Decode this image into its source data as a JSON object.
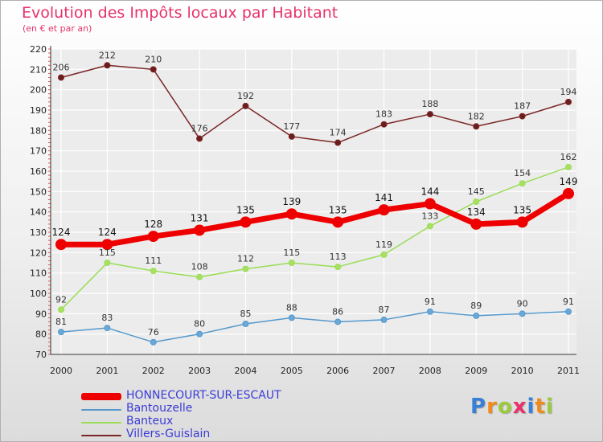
{
  "title": "Evolution des Impôts locaux par Habitant",
  "subtitle": "(en € et par an)",
  "logo": {
    "text": "Proxiti",
    "colors": [
      "#3a7fd6",
      "#f08a1c",
      "#9bcb3c",
      "#e8326b",
      "#3a7fd6",
      "#f08a1c",
      "#9bcb3c"
    ]
  },
  "chart_data": {
    "type": "line",
    "x": [
      "2000",
      "2001",
      "2002",
      "2003",
      "2004",
      "2005",
      "2006",
      "2007",
      "2008",
      "2009",
      "2010",
      "2011"
    ],
    "ylim": [
      70,
      220
    ],
    "yticks": [
      "70",
      "80",
      "90",
      "100",
      "110",
      "120",
      "130",
      "140",
      "150",
      "160",
      "170",
      "180",
      "190",
      "200",
      "210",
      "220"
    ],
    "grid": true,
    "legend_position": "bottom-left",
    "series": [
      {
        "name": "Villers-Guislain",
        "color": "#7b2626",
        "values": [
          206,
          212,
          210,
          176,
          192,
          177,
          174,
          183,
          188,
          182,
          187,
          194
        ]
      },
      {
        "name": "Banteux",
        "color": "#99dd55",
        "values": [
          92,
          115,
          111,
          108,
          112,
          115,
          113,
          119,
          133,
          145,
          154,
          162
        ]
      },
      {
        "name": "Bantouzelle",
        "color": "#5599cc",
        "values": [
          81,
          83,
          76,
          80,
          85,
          88,
          86,
          87,
          91,
          89,
          90,
          91
        ]
      },
      {
        "name": "HONNECOURT-SUR-ESCAUT",
        "color": "#ee0000",
        "values": [
          124,
          124,
          128,
          131,
          135,
          139,
          135,
          141,
          144,
          134,
          135,
          149
        ]
      }
    ],
    "legend": [
      "HONNECOURT-SUR-ESCAUT",
      "Bantouzelle",
      "Banteux",
      "Villers-Guislain"
    ]
  }
}
